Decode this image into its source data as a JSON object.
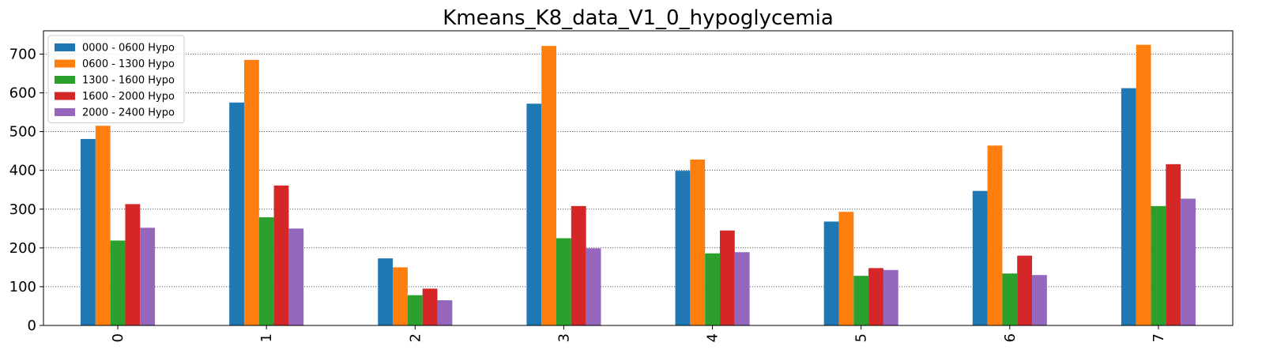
{
  "chart_data": {
    "type": "bar",
    "title": "Kmeans_K8_data_V1_0_hypoglycemia",
    "xlabel": "",
    "ylabel": "",
    "categories": [
      "0",
      "1",
      "2",
      "3",
      "4",
      "5",
      "6",
      "7"
    ],
    "ylim": [
      0,
      760
    ],
    "yticks": [
      0,
      100,
      200,
      300,
      400,
      500,
      600,
      700
    ],
    "grid": "horizontal dotted",
    "legend_position": "top-left",
    "series": [
      {
        "name": "0000 - 0600 Hypo",
        "color": "#1f77b4",
        "values": [
          481,
          575,
          173,
          572,
          399,
          268,
          347,
          612
        ]
      },
      {
        "name": "0600 - 1300 Hypo",
        "color": "#ff7f0e",
        "values": [
          515,
          685,
          150,
          721,
          428,
          293,
          464,
          724
        ]
      },
      {
        "name": "1300 - 1600 Hypo",
        "color": "#2ca02c",
        "values": [
          219,
          279,
          78,
          225,
          186,
          128,
          134,
          308
        ]
      },
      {
        "name": "1600 - 2000 Hypo",
        "color": "#d62728",
        "values": [
          313,
          361,
          95,
          308,
          245,
          148,
          180,
          416
        ]
      },
      {
        "name": "2000 - 2400 Hypo",
        "color": "#9467bd",
        "values": [
          252,
          250,
          65,
          199,
          189,
          143,
          130,
          327
        ]
      }
    ]
  }
}
